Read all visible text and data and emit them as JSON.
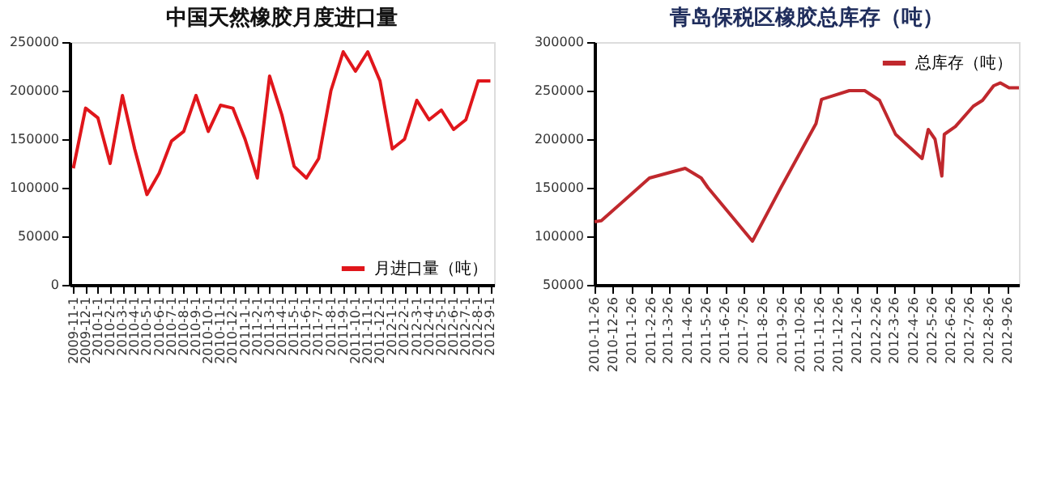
{
  "chart_data": [
    {
      "type": "line",
      "title": "中国天然橡胶月度进口量",
      "categories": [
        "2009-11-1",
        "2009-12-1",
        "2010-1-1",
        "2010-2-1",
        "2010-3-1",
        "2010-4-1",
        "2010-5-1",
        "2010-6-1",
        "2010-7-1",
        "2010-8-1",
        "2010-9-1",
        "2010-10-1",
        "2010-11-1",
        "2010-12-1",
        "2011-1-1",
        "2011-2-1",
        "2011-3-1",
        "2011-4-1",
        "2011-5-1",
        "2011-6-1",
        "2011-7-1",
        "2011-8-1",
        "2011-9-1",
        "2011-10-1",
        "2011-11-1",
        "2011-12-1",
        "2012-1-1",
        "2012-2-1",
        "2012-3-1",
        "2012-4-1",
        "2012-5-1",
        "2012-6-1",
        "2012-7-1",
        "2012-8-1",
        "2012-9-1"
      ],
      "series": [
        {
          "name": "月进口量（吨）",
          "color": "#e0161b",
          "values": [
            120000,
            182000,
            172000,
            125000,
            195000,
            140000,
            93000,
            115000,
            148000,
            158000,
            195000,
            158000,
            185000,
            182000,
            150000,
            110000,
            215000,
            175000,
            122000,
            110000,
            130000,
            200000,
            240000,
            220000,
            240000,
            210000,
            140000,
            150000,
            190000,
            170000,
            180000,
            160000,
            170000,
            210000,
            210000
          ]
        }
      ],
      "ylim": [
        0,
        250000
      ],
      "yticks": [
        0,
        50000,
        100000,
        150000,
        200000,
        250000
      ],
      "legend": "bottom right",
      "marker": "none",
      "line_style": "solid"
    },
    {
      "type": "line",
      "title": "青岛保税区橡胶总库存（吨）",
      "x": [
        "2010-11-26",
        "2010-12-07",
        "2011-02-23",
        "2011-04-22",
        "2011-05-18",
        "2011-05-29",
        "2011-08-09",
        "2011-09-24",
        "2011-11-20",
        "2011-11-29",
        "2012-01-13",
        "2012-02-07",
        "2012-03-02",
        "2012-03-28",
        "2012-05-10",
        "2012-05-20",
        "2012-05-31",
        "2012-06-11",
        "2012-06-15",
        "2012-07-03",
        "2012-08-01",
        "2012-08-16",
        "2012-09-03",
        "2012-09-14",
        "2012-09-28",
        "2012-10-14"
      ],
      "series": [
        {
          "name": "总库存（吨）",
          "color": "#c0282d",
          "values": [
            115000,
            116000,
            160000,
            170000,
            160000,
            150000,
            95000,
            150000,
            216000,
            241000,
            250000,
            250000,
            240000,
            205000,
            180000,
            210000,
            200000,
            162000,
            205000,
            213000,
            234000,
            240000,
            255000,
            258000,
            253000,
            253000
          ]
        }
      ],
      "xlim": [
        "2010-11-26",
        "2012-10-14"
      ],
      "xticks": [
        {
          "value": "2010-11-26",
          "label": "2010-11-26"
        },
        {
          "value": "2010-12-26",
          "label": "2010-12-26"
        },
        {
          "value": "2011-01-26",
          "label": "2011-1-26"
        },
        {
          "value": "2011-02-26",
          "label": "2011-2-26"
        },
        {
          "value": "2011-03-26",
          "label": "2011-3-26"
        },
        {
          "value": "2011-04-26",
          "label": "2011-4-26"
        },
        {
          "value": "2011-05-26",
          "label": "2011-5-26"
        },
        {
          "value": "2011-06-26",
          "label": "2011-6-26"
        },
        {
          "value": "2011-07-26",
          "label": "2011-7-26"
        },
        {
          "value": "2011-08-26",
          "label": "2011-8-26"
        },
        {
          "value": "2011-09-26",
          "label": "2011-9-26"
        },
        {
          "value": "2011-10-26",
          "label": "2011-10-26"
        },
        {
          "value": "2011-11-26",
          "label": "2011-11-26"
        },
        {
          "value": "2011-12-26",
          "label": "2011-12-26"
        },
        {
          "value": "2012-01-26",
          "label": "2012-1-26"
        },
        {
          "value": "2012-02-26",
          "label": "2012-2-26"
        },
        {
          "value": "2012-03-26",
          "label": "2012-3-26"
        },
        {
          "value": "2012-04-26",
          "label": "2012-4-26"
        },
        {
          "value": "2012-05-26",
          "label": "2012-5-26"
        },
        {
          "value": "2012-06-26",
          "label": "2012-6-26"
        },
        {
          "value": "2012-07-26",
          "label": "2012-7-26"
        },
        {
          "value": "2012-08-26",
          "label": "2012-8-26"
        },
        {
          "value": "2012-09-26",
          "label": "2012-9-26"
        }
      ],
      "ylim": [
        50000,
        300000
      ],
      "yticks": [
        50000,
        100000,
        150000,
        200000,
        250000,
        300000
      ],
      "legend": "top right",
      "marker": "none",
      "line_style": "solid"
    }
  ]
}
